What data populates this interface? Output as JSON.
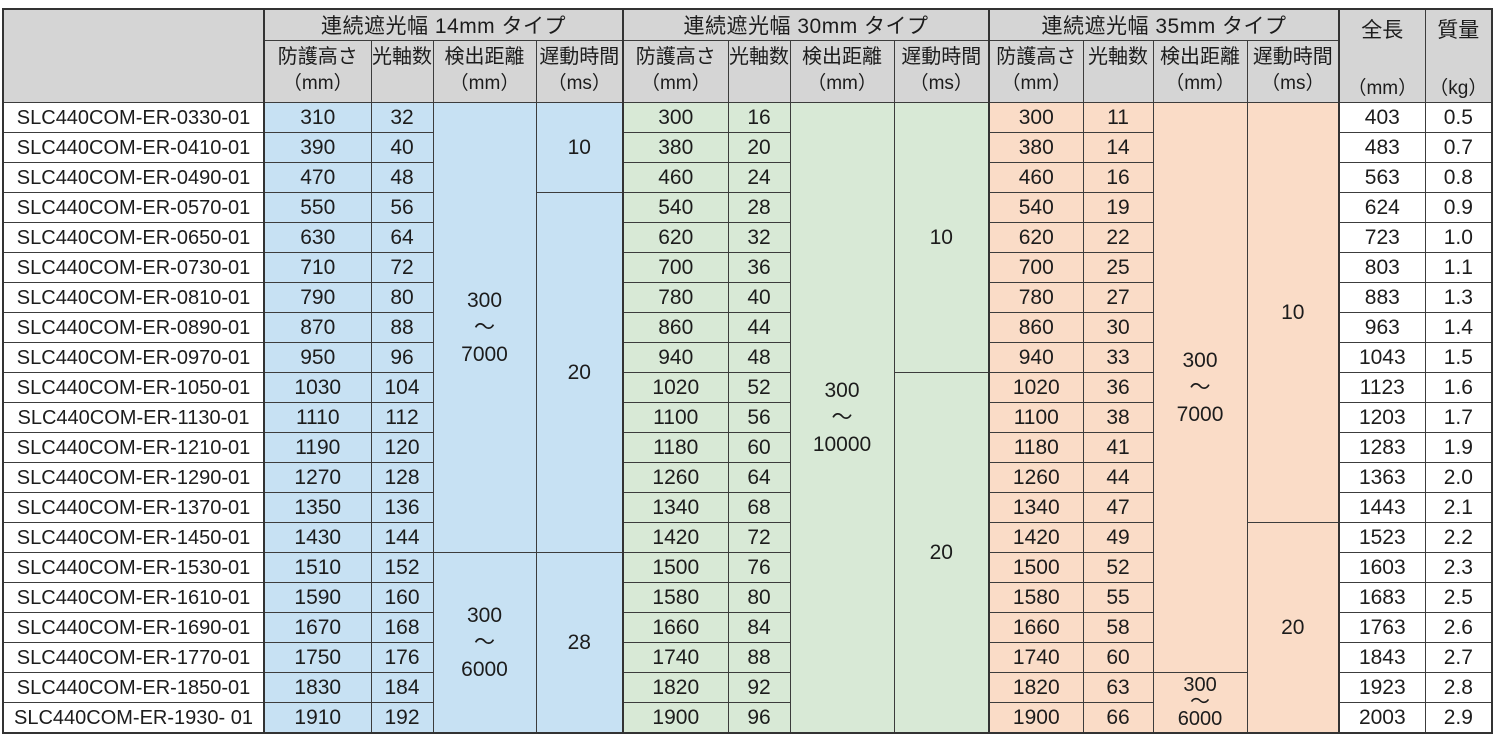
{
  "table": {
    "corner": "",
    "groups": [
      {
        "title": "連続遮光幅 14mm タイプ"
      },
      {
        "title": "連続遮光幅 30mm タイプ"
      },
      {
        "title": "連続遮光幅 35mm タイプ"
      }
    ],
    "sub": {
      "height": "防護高さ",
      "height_unit": "（mm）",
      "axes": "光軸数",
      "dist": "検出距離",
      "dist_unit": "（mm）",
      "delay": "遅動時間",
      "delay_unit": "（ms）"
    },
    "length_header": "全長",
    "length_unit": "（mm）",
    "mass_header": "質量",
    "mass_unit": "（kg）",
    "rows": [
      [
        "SLC440COM-ER-0330-01",
        "310",
        "32",
        "300",
        "16",
        "300",
        "11",
        "403",
        "0.5"
      ],
      [
        "SLC440COM-ER-0410-01",
        "390",
        "40",
        "380",
        "20",
        "380",
        "14",
        "483",
        "0.7"
      ],
      [
        "SLC440COM-ER-0490-01",
        "470",
        "48",
        "460",
        "24",
        "460",
        "16",
        "563",
        "0.8"
      ],
      [
        "SLC440COM-ER-0570-01",
        "550",
        "56",
        "540",
        "28",
        "540",
        "19",
        "624",
        "0.9"
      ],
      [
        "SLC440COM-ER-0650-01",
        "630",
        "64",
        "620",
        "32",
        "620",
        "22",
        "723",
        "1.0"
      ],
      [
        "SLC440COM-ER-0730-01",
        "710",
        "72",
        "700",
        "36",
        "700",
        "25",
        "803",
        "1.1"
      ],
      [
        "SLC440COM-ER-0810-01",
        "790",
        "80",
        "780",
        "40",
        "780",
        "27",
        "883",
        "1.3"
      ],
      [
        "SLC440COM-ER-0890-01",
        "870",
        "88",
        "860",
        "44",
        "860",
        "30",
        "963",
        "1.4"
      ],
      [
        "SLC440COM-ER-0970-01",
        "950",
        "96",
        "940",
        "48",
        "940",
        "33",
        "1043",
        "1.5"
      ],
      [
        "SLC440COM-ER-1050-01",
        "1030",
        "104",
        "1020",
        "52",
        "1020",
        "36",
        "1123",
        "1.6"
      ],
      [
        "SLC440COM-ER-1130-01",
        "1110",
        "112",
        "1100",
        "56",
        "1100",
        "38",
        "1203",
        "1.7"
      ],
      [
        "SLC440COM-ER-1210-01",
        "1190",
        "120",
        "1180",
        "60",
        "1180",
        "41",
        "1283",
        "1.9"
      ],
      [
        "SLC440COM-ER-1290-01",
        "1270",
        "128",
        "1260",
        "64",
        "1260",
        "44",
        "1363",
        "2.0"
      ],
      [
        "SLC440COM-ER-1370-01",
        "1350",
        "136",
        "1340",
        "68",
        "1340",
        "47",
        "1443",
        "2.1"
      ],
      [
        "SLC440COM-ER-1450-01",
        "1430",
        "144",
        "1420",
        "72",
        "1420",
        "49",
        "1523",
        "2.2"
      ],
      [
        "SLC440COM-ER-1530-01",
        "1510",
        "152",
        "1500",
        "76",
        "1500",
        "52",
        "1603",
        "2.3"
      ],
      [
        "SLC440COM-ER-1610-01",
        "1590",
        "160",
        "1580",
        "80",
        "1580",
        "55",
        "1683",
        "2.5"
      ],
      [
        "SLC440COM-ER-1690-01",
        "1670",
        "168",
        "1660",
        "84",
        "1660",
        "58",
        "1763",
        "2.6"
      ],
      [
        "SLC440COM-ER-1770-01",
        "1750",
        "176",
        "1740",
        "88",
        "1740",
        "60",
        "1843",
        "2.7"
      ],
      [
        "SLC440COM-ER-1850-01",
        "1830",
        "184",
        "1820",
        "92",
        "1820",
        "63",
        "1923",
        "2.8"
      ],
      [
        "SLC440COM-ER-1930- 01",
        "1910",
        "192",
        "1900",
        "96",
        "1900",
        "66",
        "2003",
        "2.9"
      ]
    ],
    "merged": {
      "d14": [
        {
          "from": 0,
          "to": 14,
          "lines": [
            "300",
            "～",
            "7000"
          ]
        },
        {
          "from": 15,
          "to": 20,
          "lines": [
            "300",
            "～",
            "6000"
          ]
        }
      ],
      "t14": [
        {
          "from": 0,
          "to": 2,
          "text": "10"
        },
        {
          "from": 3,
          "to": 14,
          "text": "20"
        },
        {
          "from": 15,
          "to": 20,
          "text": "28"
        }
      ],
      "d30": [
        {
          "from": 0,
          "to": 20,
          "lines": [
            "300",
            "～",
            "10000"
          ]
        }
      ],
      "t30": [
        {
          "from": 0,
          "to": 8,
          "text": "10"
        },
        {
          "from": 9,
          "to": 20,
          "text": "20"
        }
      ],
      "d35": [
        {
          "from": 0,
          "to": 18,
          "lines": [
            "300",
            "～",
            "7000"
          ]
        },
        {
          "from": 19,
          "to": 20,
          "lines": [
            "300",
            "～",
            "6000"
          ],
          "compact": true
        }
      ],
      "t35": [
        {
          "from": 0,
          "to": 13,
          "text": "10"
        },
        {
          "from": 14,
          "to": 20,
          "text": "20"
        }
      ]
    },
    "colors": {
      "header_bg": "#d5d5d5",
      "type14_bg": "#c7e1f3",
      "type30_bg": "#d8e9d6",
      "type35_bg": "#fadcc7",
      "border": "#3c3c3c"
    }
  }
}
